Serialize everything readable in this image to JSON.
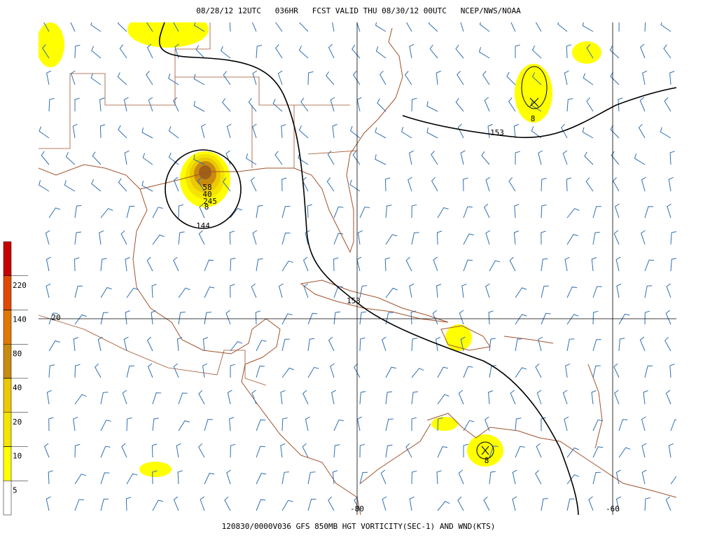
{
  "header": {
    "title": "08/28/12 12UTC   036HR   FCST VALID THU 08/30/12 00UTC   NCEP/NWS/NOAA"
  },
  "footer": {
    "caption": "120830/0000V036 GFS 850MB HGT VORTICITY(SEC-1) AND WND(KTS)"
  },
  "colorbar": {
    "ticks": [
      5,
      10,
      20,
      40,
      80,
      140,
      220
    ],
    "colors": [
      "#ffffff",
      "#ffff00",
      "#f4e400",
      "#ecc800",
      "#c88a10",
      "#e07800",
      "#e04a00",
      "#c80000"
    ]
  },
  "grid_labels": {
    "lat": [
      20
    ],
    "lon": [
      -80,
      -60
    ]
  },
  "contour_labels": [
    "153",
    "153",
    "144",
    "8",
    "8",
    "8",
    "58",
    "40",
    "245"
  ]
}
